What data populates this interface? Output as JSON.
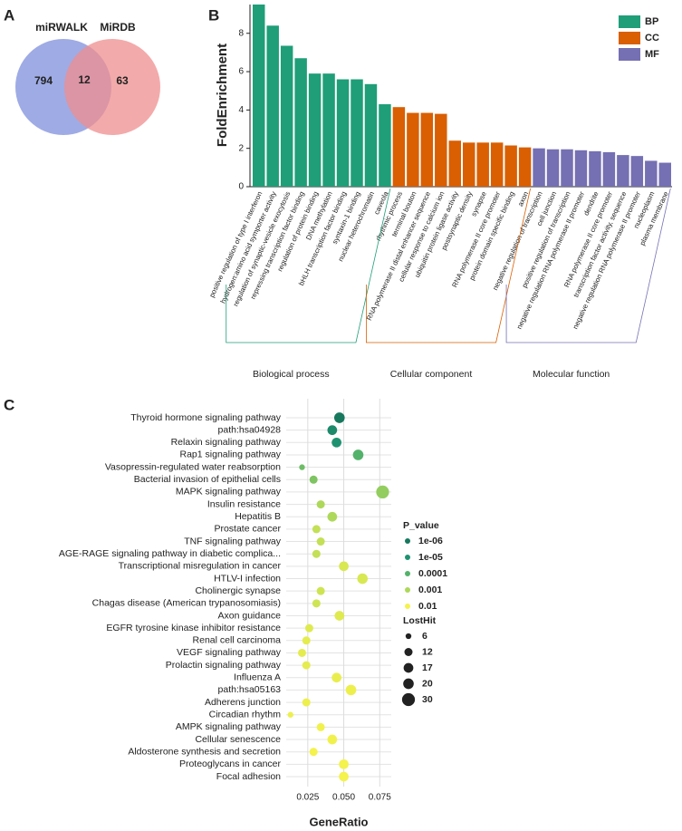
{
  "chart_data": [
    {
      "type": "venn",
      "panel_label": "A",
      "sets": [
        {
          "name": "miRWALK",
          "color": "#7f8fdc"
        },
        {
          "name": "MiRDB",
          "color": "#ef8d8d"
        }
      ],
      "values": [
        794,
        12,
        63
      ]
    },
    {
      "type": "bar",
      "panel_label": "B",
      "ylabel": "FoldEnrichment",
      "categories": [
        "positive regulation of type I interferon",
        "hydrogen:amino acid symporter activity",
        "regulation of synaptic-vesicle exocytosis",
        "repressing transcription factor binding",
        "regulation of protein binding",
        "DNA methylation",
        "bHLH transcription factor binding",
        "syntaxin-1 binding",
        "nuclear heterochromatin",
        "caveola",
        "rhythmic process",
        "terminal bouton",
        "RNA polymerase II distal enhancer sequence",
        "cellular response to calcium ion",
        "ubiquitin protein ligase activity",
        "postsynaptic density",
        "synapse",
        "RNA polymerase II core promoter",
        "protein domain specific binding",
        "axon",
        "negative regulation of transcription",
        "cell junction",
        "positive regulation of transcription",
        "negative regulation RNA polymerase II promoter",
        "dendrite",
        "RNA polymerase II core promoter",
        "transcription factor activity, sequence",
        "negative regulation RNA polymerase II promoter",
        "nucleoplasm",
        "plasma membrane"
      ],
      "series": [
        {
          "name": "BP",
          "color": "#1f9e77",
          "values": [
            9.5,
            8.4,
            7.35,
            6.7,
            5.9,
            5.9,
            5.6,
            5.6,
            5.35,
            4.3,
            null,
            null,
            null,
            null,
            null,
            null,
            null,
            null,
            null,
            null,
            null,
            null,
            null,
            null,
            null,
            null,
            null,
            null,
            null,
            null
          ]
        },
        {
          "name": "CC",
          "color": "#d95f02",
          "values": [
            null,
            null,
            null,
            null,
            null,
            null,
            null,
            null,
            null,
            null,
            4.15,
            3.85,
            3.85,
            3.8,
            2.4,
            2.3,
            2.3,
            2.3,
            2.15,
            2.05,
            null,
            null,
            null,
            null,
            null,
            null,
            null,
            null,
            null,
            null
          ]
        },
        {
          "name": "MF",
          "color": "#7570b3",
          "values": [
            null,
            null,
            null,
            null,
            null,
            null,
            null,
            null,
            null,
            null,
            null,
            null,
            null,
            null,
            null,
            null,
            null,
            null,
            null,
            null,
            2.0,
            1.95,
            1.95,
            1.9,
            1.85,
            1.8,
            1.65,
            1.6,
            1.35,
            1.25
          ]
        }
      ],
      "group_labels": [
        "Biological process",
        "Cellular component",
        "Molecular function"
      ],
      "ylim": [
        0,
        9.5
      ],
      "yticks": [
        0,
        2,
        4,
        6,
        8
      ]
    },
    {
      "type": "dot",
      "panel_label": "C",
      "xlabel": "GeneRatio",
      "categories": [
        "Thyroid hormone signaling pathway",
        "path:hsa04928",
        "Relaxin signaling pathway",
        "Rap1 signaling pathway",
        "Vasopressin-regulated water reabsorption",
        "Bacterial invasion of epithelial cells",
        "MAPK signaling pathway",
        "Insulin resistance",
        "Hepatitis B",
        "Prostate cancer",
        "TNF signaling pathway",
        "AGE-RAGE signaling pathway in diabetic complica...",
        "Transcriptional misregulation in cancer",
        "HTLV-I infection",
        "Cholinergic synapse",
        "Chagas disease (American trypanosomiasis)",
        "Axon guidance",
        "EGFR tyrosine kinase inhibitor resistance",
        "Renal cell carcinoma",
        "VEGF signaling pathway",
        "Prolactin signaling pathway",
        "Influenza A",
        "path:hsa05163",
        "Adherens junction",
        "Circadian rhythm",
        "AMPK signaling pathway",
        "Cellular senescence",
        "Aldosterone synthesis and secretion",
        "Proteoglycans in cancer",
        "Focal adhesion"
      ],
      "values": [
        0.047,
        0.042,
        0.045,
        0.06,
        0.021,
        0.029,
        0.077,
        0.034,
        0.042,
        0.031,
        0.034,
        0.031,
        0.05,
        0.063,
        0.034,
        0.031,
        0.047,
        0.026,
        0.024,
        0.021,
        0.024,
        0.045,
        0.055,
        0.024,
        0.013,
        0.034,
        0.042,
        0.029,
        0.05,
        0.05
      ],
      "p_values": [
        1e-06,
        5e-06,
        1e-05,
        0.0001,
        0.0002,
        0.0003,
        0.0005,
        0.001,
        0.001,
        0.002,
        0.002,
        0.002,
        0.004,
        0.004,
        0.003,
        0.003,
        0.005,
        0.005,
        0.006,
        0.006,
        0.006,
        0.007,
        0.008,
        0.008,
        0.008,
        0.009,
        0.009,
        0.01,
        0.01,
        0.01
      ],
      "sizes": [
        20,
        17,
        17,
        20,
        6,
        12,
        30,
        12,
        17,
        12,
        12,
        12,
        17,
        20,
        12,
        12,
        17,
        12,
        12,
        12,
        12,
        17,
        20,
        12,
        6,
        12,
        17,
        12,
        17,
        17
      ],
      "xlim": [
        0.01,
        0.083
      ],
      "xticks": [
        0.025,
        {
          "value": 0.05,
          "label": "0.050"
        },
        0.075
      ],
      "color_legend": {
        "title": "P_value",
        "ticks": [
          {
            "value": 1e-06,
            "label": "1e-06"
          },
          {
            "value": 1e-05,
            "label": "1e-05"
          },
          0.0001,
          0.001,
          0.01
        ],
        "colors": [
          "#17785e",
          "#1e9270",
          "#53b26a",
          "#aed85a",
          "#f4f24c"
        ]
      },
      "size_legend": {
        "title": "LostHit",
        "ticks": [
          6,
          12,
          17,
          20,
          30
        ]
      }
    }
  ]
}
